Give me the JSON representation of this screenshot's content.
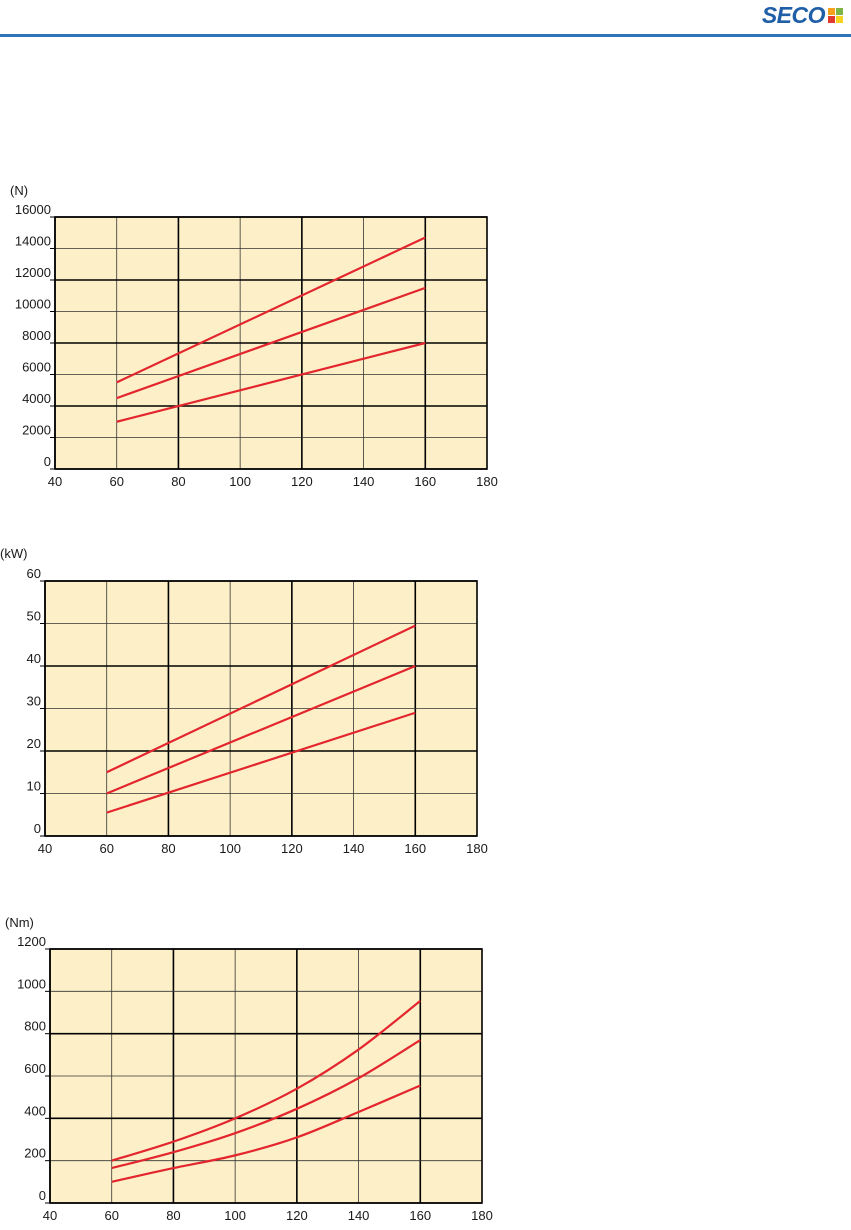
{
  "header": {
    "logo_text": "SECO",
    "accent": "#2e73b9",
    "logo_square_colors": [
      "#f5a11c",
      "#7db544",
      "#e23a2f",
      "#f7d21e"
    ]
  },
  "colors": {
    "plot_bg": "#fdf0c8",
    "line": "#e3262e",
    "grid_major": "#000000",
    "grid_minor": "#333333"
  },
  "chart_data": [
    {
      "type": "line",
      "ylabel": "(N)",
      "xlim": [
        40,
        180
      ],
      "ylim": [
        0,
        16000
      ],
      "xticks": [
        40,
        60,
        80,
        100,
        120,
        140,
        160,
        180
      ],
      "yticks": [
        0,
        2000,
        4000,
        6000,
        8000,
        10000,
        12000,
        14000,
        16000
      ],
      "ytick_labels": [
        "0",
        "2000",
        "4000",
        "6000",
        "8000",
        "10000",
        "12000",
        "14000",
        "16000"
      ],
      "xtick_labels": [
        "40",
        "60",
        "80",
        "100",
        "120",
        "140",
        "160",
        "180"
      ],
      "grid": true,
      "series": [
        {
          "x": [
            60,
            160
          ],
          "y": [
            5500,
            14700
          ]
        },
        {
          "x": [
            60,
            160
          ],
          "y": [
            4500,
            11500
          ]
        },
        {
          "x": [
            60,
            160
          ],
          "y": [
            3000,
            8000
          ]
        }
      ]
    },
    {
      "type": "line",
      "ylabel": "(kW)",
      "xlim": [
        40,
        180
      ],
      "ylim": [
        0,
        60
      ],
      "xticks": [
        40,
        60,
        80,
        100,
        120,
        140,
        160,
        180
      ],
      "yticks": [
        0,
        10,
        20,
        30,
        40,
        50,
        60
      ],
      "ytick_labels": [
        "0",
        "10",
        "20",
        "30",
        "40",
        "50",
        "60"
      ],
      "xtick_labels": [
        "40",
        "60",
        "80",
        "100",
        "120",
        "140",
        "160",
        "180"
      ],
      "grid": true,
      "series": [
        {
          "x": [
            60,
            160
          ],
          "y": [
            15,
            49.5
          ]
        },
        {
          "x": [
            60,
            160
          ],
          "y": [
            10,
            40
          ]
        },
        {
          "x": [
            60,
            160
          ],
          "y": [
            5.5,
            29
          ]
        }
      ]
    },
    {
      "type": "line",
      "ylabel": "(Nm)",
      "xlim": [
        40,
        180
      ],
      "ylim": [
        0,
        1200
      ],
      "xticks": [
        40,
        60,
        80,
        100,
        120,
        140,
        160,
        180
      ],
      "yticks": [
        0,
        200,
        400,
        600,
        800,
        1000,
        1200
      ],
      "ytick_labels": [
        "0",
        "200",
        "400",
        "600",
        "800",
        "1000",
        "1200"
      ],
      "xtick_labels": [
        "40",
        "60",
        "80",
        "100",
        "120",
        "140",
        "160",
        "180"
      ],
      "grid": true,
      "series": [
        {
          "x": [
            60,
            80,
            100,
            120,
            140,
            160
          ],
          "y": [
            200,
            290,
            400,
            540,
            725,
            955
          ]
        },
        {
          "x": [
            60,
            80,
            100,
            120,
            140,
            160
          ],
          "y": [
            165,
            240,
            330,
            445,
            590,
            770
          ]
        },
        {
          "x": [
            60,
            80,
            100,
            120,
            140,
            160
          ],
          "y": [
            100,
            165,
            225,
            310,
            430,
            555
          ]
        }
      ]
    }
  ]
}
